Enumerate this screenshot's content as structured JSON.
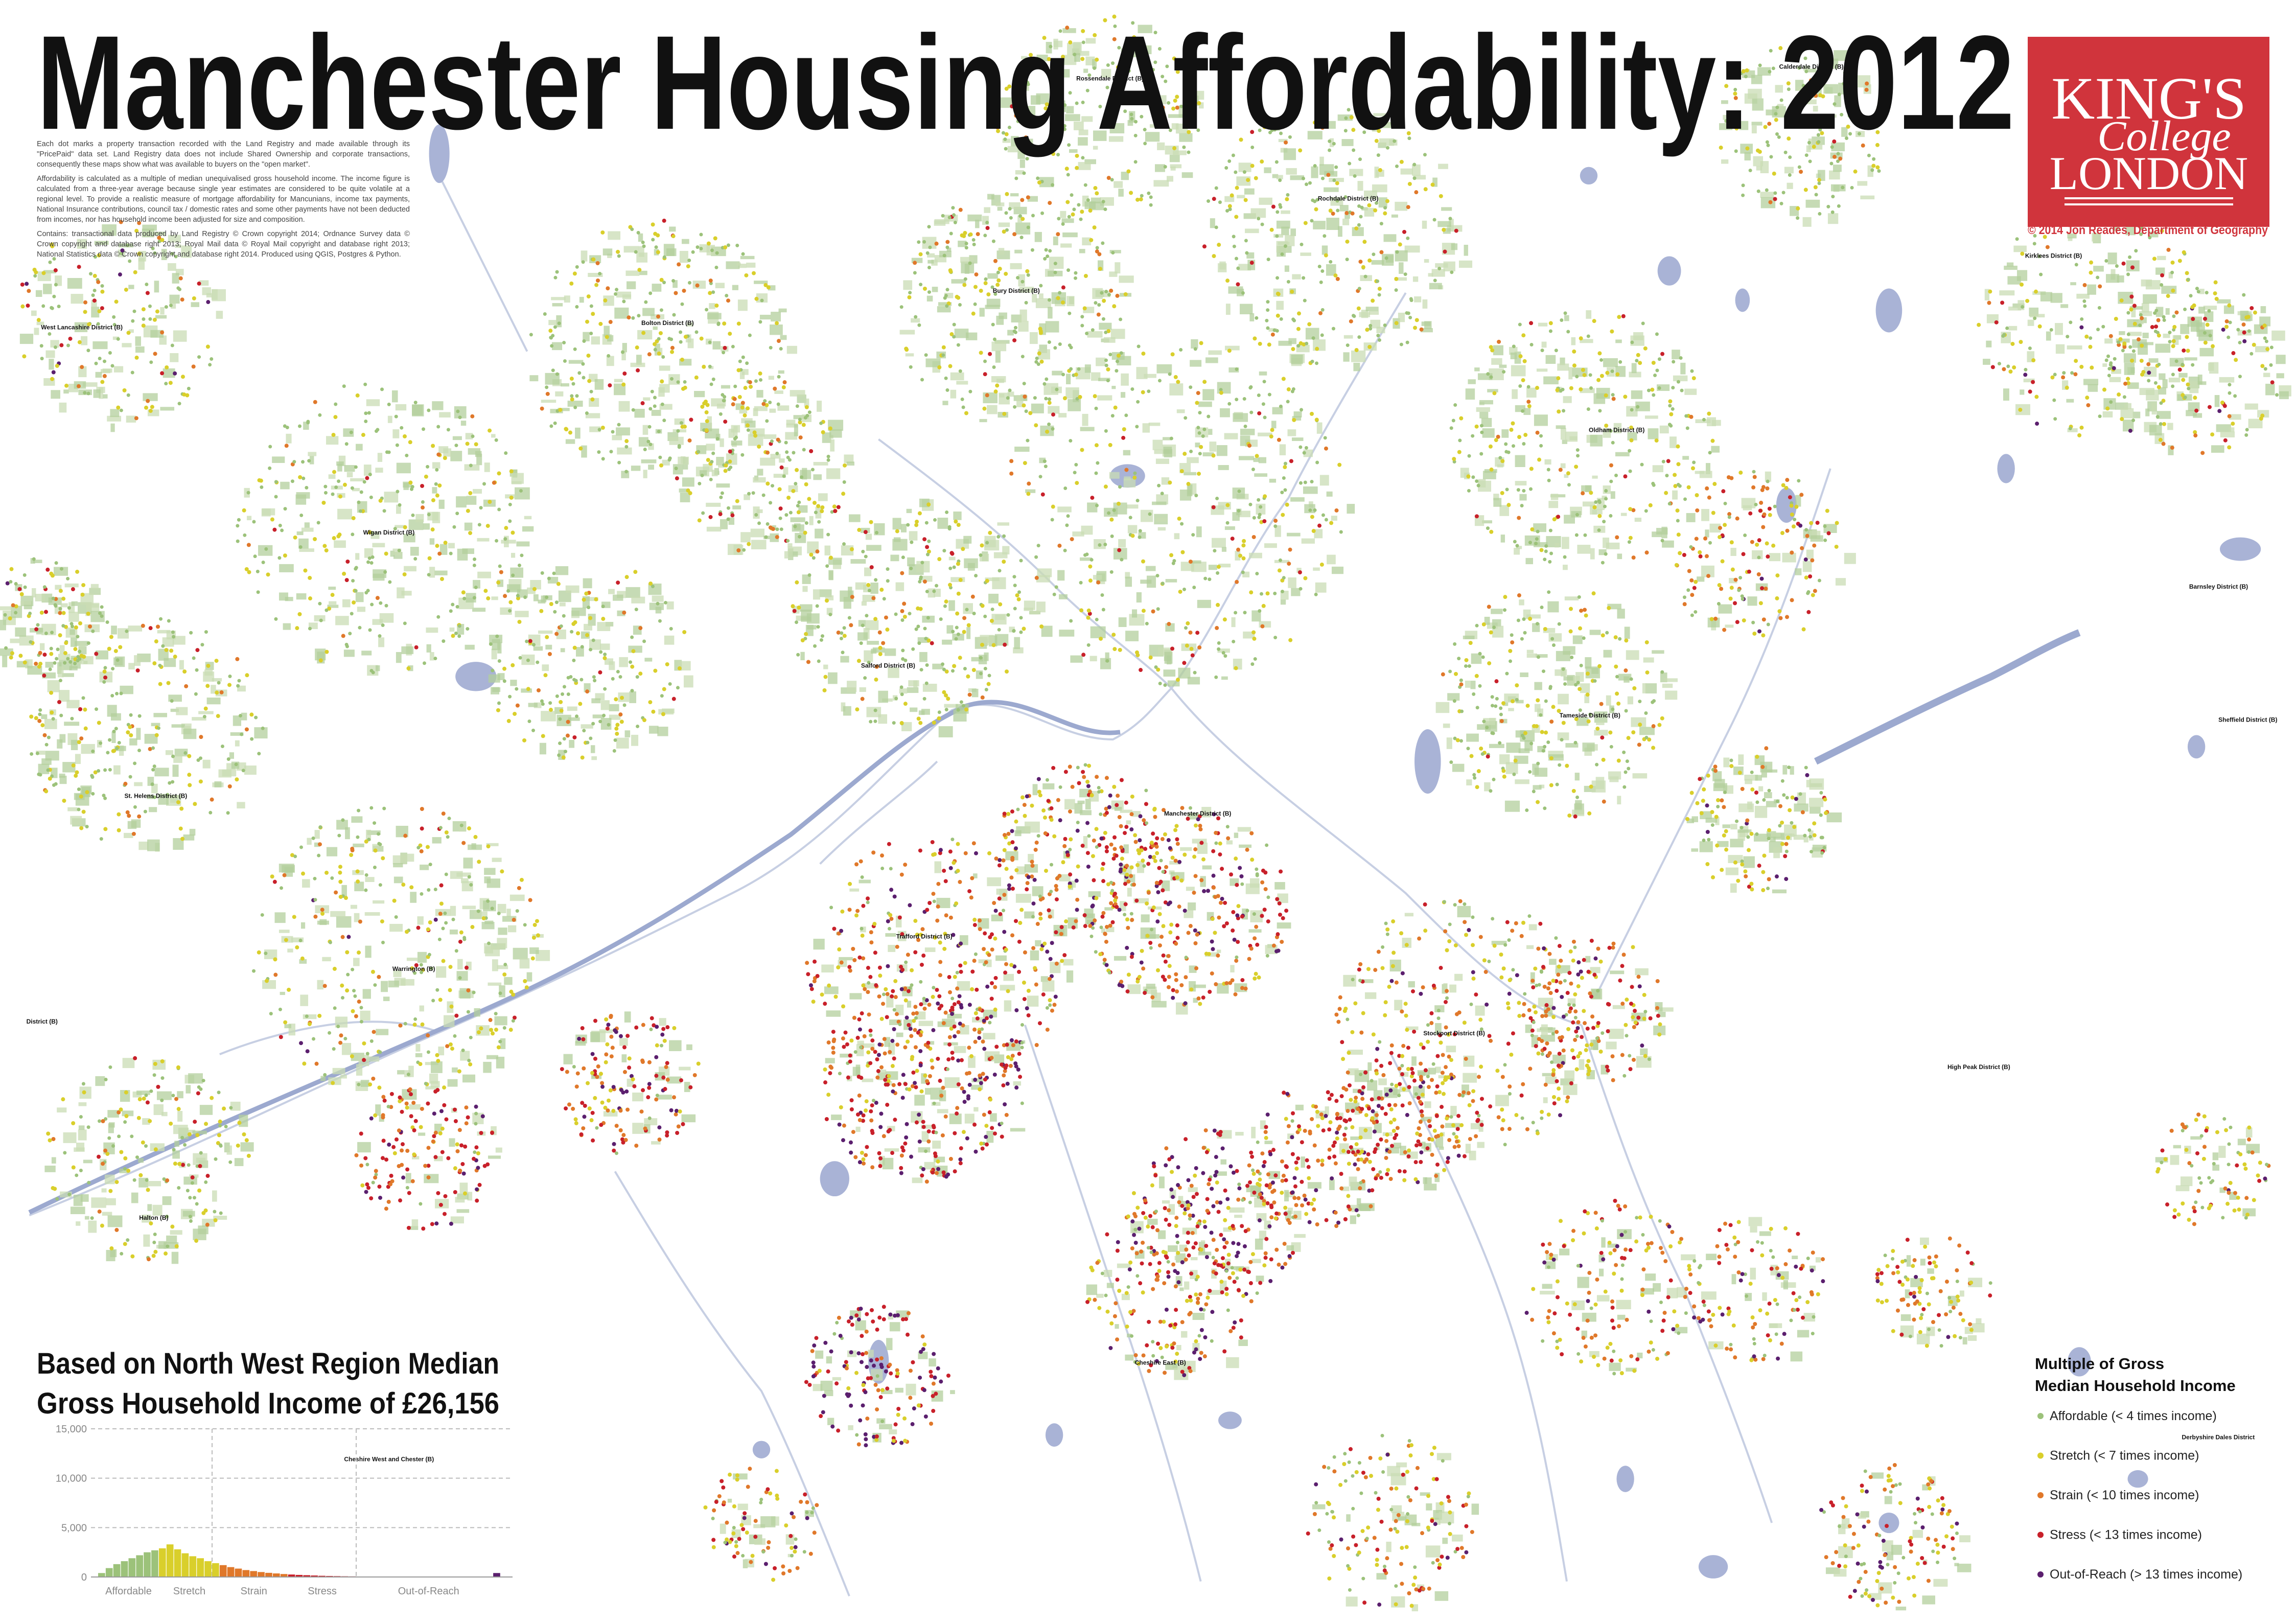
{
  "title": "Manchester Housing Affordability: 2012",
  "description": [
    "Each dot marks a property transaction recorded with the Land Registry and made available through its \"PricePaid\" data set. Land Registry data does not include Shared Ownership and corporate transactions, consequently these maps show what was available to buyers on the \"open market\".",
    "Affordability is calculated as a multiple of median unequivalised gross household income. The income figure is calculated from a three-year average because single year estimates are considered to be quite volatile at a regional level. To provide a realistic measure of mortgage affordability for Mancunians, income tax payments, National Insurance contributions, council tax / domestic rates and some other payments have not been deducted from incomes, nor has household income been adjusted for size and composition.",
    "Contains: transactional data produced by Land Registry © Crown copyright 2014; Ordnance Survey data © Crown copyright and database right 2013; Royal Mail data © Royal Mail copyright and database right 2013; National Statistics data © Crown copyright and database right 2014. Produced using QGIS, Postgres & Python."
  ],
  "logo": {
    "line1": "KING'S",
    "line2": "College",
    "line3": "LONDON",
    "color": "#d0343c"
  },
  "credit": "© 2014 Jon Reades, Department of Geography",
  "subtitle": [
    "Based on North West Region Median",
    "Gross Household Income of £26,156"
  ],
  "legend": {
    "title": [
      "Multiple of Gross",
      "Median Household Income"
    ],
    "items": [
      {
        "label": "Affordable (< 4 times income)",
        "color": "#9cc27a"
      },
      {
        "label": "Stretch (< 7 times income)",
        "color": "#d9cf2b"
      },
      {
        "label": "Strain (< 10 times income)",
        "color": "#e0782a"
      },
      {
        "label": "Stress (< 13 times income)",
        "color": "#c8202a"
      },
      {
        "label": "Out-of-Reach (> 13 times income)",
        "color": "#5b1f6e"
      }
    ]
  },
  "places": [
    {
      "label": "Rossendale District (B)"
    },
    {
      "label": "Calderdale District (B)"
    },
    {
      "label": "Rochdale District (B)"
    },
    {
      "label": "Bury District (B)"
    },
    {
      "label": "Bolton District (B)"
    },
    {
      "label": "West Lancashire District (B)"
    },
    {
      "label": "Kirklees District (B)"
    },
    {
      "label": "Oldham District (B)"
    },
    {
      "label": "Wigan District (B)"
    },
    {
      "label": "Barnsley District (B)"
    },
    {
      "label": "Salford District (B)"
    },
    {
      "label": "Tameside District (B)"
    },
    {
      "label": "Sheffield District (B)"
    },
    {
      "label": "St. Helens District (B)"
    },
    {
      "label": "Manchester District (B)"
    },
    {
      "label": "Trafford District (B)"
    },
    {
      "label": "Warrington (B)"
    },
    {
      "label": "District (B)"
    },
    {
      "label": "Stockport District (B)"
    },
    {
      "label": "High Peak District (B)"
    },
    {
      "label": "Halton (B)"
    },
    {
      "label": "Cheshire East (B)"
    },
    {
      "label": "Cheshire West and Chester (B)"
    },
    {
      "label": "Derbyshire Dales District"
    }
  ],
  "chart_data": {
    "type": "bar",
    "ylim": [
      0,
      15000
    ],
    "yticks": [
      0,
      {
        "value": 5000,
        "label": "5,000"
      },
      {
        "value": 10000,
        "label": "10,000"
      },
      {
        "value": 15000,
        "label": "15,000"
      }
    ],
    "grid": true,
    "series": [
      {
        "name": "Affordable",
        "color": "#9cc27a",
        "values": [
          400,
          900,
          1300,
          1600,
          1900,
          2200,
          2500,
          2700
        ]
      },
      {
        "name": "Stretch",
        "color": "#d9cf2b",
        "values": [
          2900,
          3300,
          2800,
          2400,
          2100,
          1900,
          1600,
          1400
        ]
      },
      {
        "name": "Strain",
        "color": "#e0782a",
        "values": [
          1200,
          1000,
          850,
          700,
          600,
          500,
          420,
          360,
          300
        ]
      },
      {
        "name": "Stress",
        "color": "#c8202a",
        "values": [
          250,
          210,
          180,
          150,
          120,
          100,
          85,
          70,
          60
        ]
      },
      {
        "name": "Out-of-Reach",
        "color": "#5b1f6e",
        "values": [
          50,
          40,
          35,
          30,
          25,
          20,
          18,
          15,
          12,
          10,
          10,
          8,
          8,
          6,
          6,
          5,
          5,
          4,
          400
        ]
      }
    ]
  }
}
